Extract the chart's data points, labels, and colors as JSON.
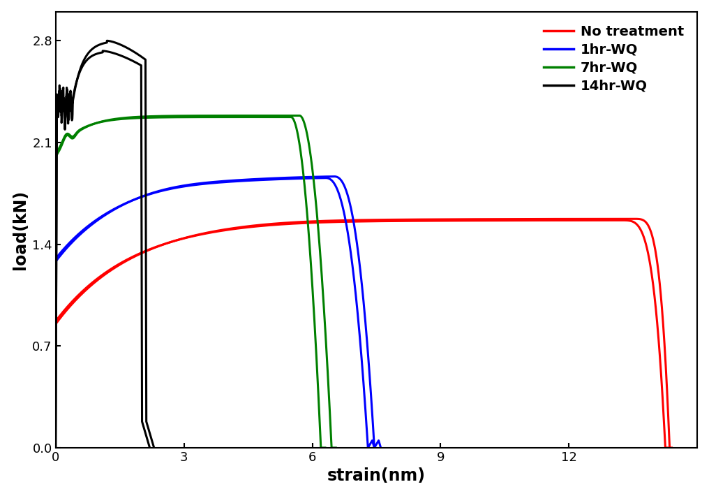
{
  "xlabel": "strain(nm)",
  "ylabel": "load(kN)",
  "xlim": [
    0,
    15
  ],
  "ylim": [
    0.0,
    3.0
  ],
  "xticks": [
    0,
    3,
    6,
    9,
    12
  ],
  "yticks": [
    0.0,
    0.7,
    1.4,
    2.1,
    2.8
  ],
  "background_color": "#ffffff",
  "line_width": 2.2,
  "legend_labels": [
    "No treatment",
    "1hr-WQ",
    "7hr-WQ",
    "14hr-WQ"
  ],
  "legend_colors": [
    "#ff0000",
    "#0000ff",
    "#008000",
    "#000000"
  ]
}
